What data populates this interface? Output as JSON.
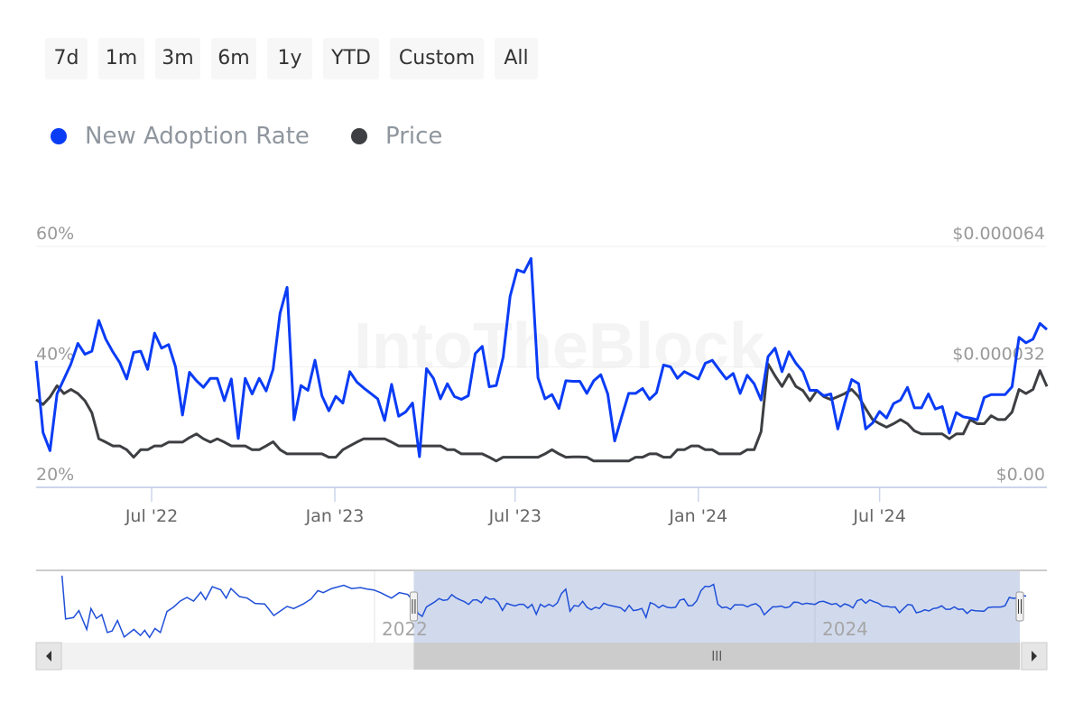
{
  "range_selector": {
    "buttons": [
      "7d",
      "1m",
      "3m",
      "6m",
      "1y",
      "YTD",
      "Custom",
      "All"
    ]
  },
  "legend": [
    {
      "label": "New Adoption Rate",
      "color": "#0a3cf5"
    },
    {
      "label": "Price",
      "color": "#3d3f42"
    }
  ],
  "watermark": "IntoTheBlock",
  "chart_data": {
    "type": "line",
    "title": "",
    "left_axis": {
      "ticks": [
        "20%",
        "40%",
        "60%"
      ],
      "range": [
        20,
        60
      ],
      "unit": "%"
    },
    "right_axis": {
      "ticks": [
        "$0.00",
        "$0.000032",
        "$0.000064"
      ],
      "range": [
        0,
        6.4e-05
      ]
    },
    "x_ticks": [
      {
        "label": "Jul '22",
        "date": "2022-07-01"
      },
      {
        "label": "Jan '23",
        "date": "2023-01-01"
      },
      {
        "label": "Jul '23",
        "date": "2023-07-01"
      },
      {
        "label": "Jan '24",
        "date": "2024-01-01"
      },
      {
        "label": "Jul '24",
        "date": "2024-07-01"
      }
    ],
    "x_range": [
      "2022-03-07",
      "2024-12-16"
    ],
    "grid": "horizontal",
    "legend_position": "top-left",
    "dates": [
      "2022-03-07",
      "2022-03-14",
      "2022-03-21",
      "2022-03-28",
      "2022-04-04",
      "2022-04-11",
      "2022-04-18",
      "2022-04-25",
      "2022-05-02",
      "2022-05-09",
      "2022-05-16",
      "2022-05-23",
      "2022-05-30",
      "2022-06-06",
      "2022-06-13",
      "2022-06-20",
      "2022-06-27",
      "2022-07-04",
      "2022-07-11",
      "2022-07-18",
      "2022-07-25",
      "2022-08-01",
      "2022-08-08",
      "2022-08-15",
      "2022-08-22",
      "2022-08-29",
      "2022-09-05",
      "2022-09-12",
      "2022-09-19",
      "2022-09-26",
      "2022-10-03",
      "2022-10-10",
      "2022-10-17",
      "2022-10-24",
      "2022-10-31",
      "2022-11-07",
      "2022-11-14",
      "2022-11-21",
      "2022-11-28",
      "2022-12-05",
      "2022-12-12",
      "2022-12-19",
      "2022-12-26",
      "2023-01-02",
      "2023-01-09",
      "2023-01-16",
      "2023-01-23",
      "2023-01-30",
      "2023-02-06",
      "2023-02-13",
      "2023-02-20",
      "2023-02-27",
      "2023-03-06",
      "2023-03-13",
      "2023-03-20",
      "2023-03-27",
      "2023-04-03",
      "2023-04-10",
      "2023-04-17",
      "2023-04-24",
      "2023-05-01",
      "2023-05-08",
      "2023-05-15",
      "2023-05-22",
      "2023-05-29",
      "2023-06-05",
      "2023-06-12",
      "2023-06-19",
      "2023-06-26",
      "2023-07-03",
      "2023-07-10",
      "2023-07-17",
      "2023-07-24",
      "2023-07-31",
      "2023-08-07",
      "2023-08-14",
      "2023-08-21",
      "2023-08-28",
      "2023-09-04",
      "2023-09-11",
      "2023-09-18",
      "2023-09-25",
      "2023-10-02",
      "2023-10-09",
      "2023-10-16",
      "2023-10-23",
      "2023-10-30",
      "2023-11-06",
      "2023-11-13",
      "2023-11-20",
      "2023-11-27",
      "2023-12-04",
      "2023-12-11",
      "2023-12-18",
      "2023-12-25",
      "2024-01-01",
      "2024-01-08",
      "2024-01-15",
      "2024-01-22",
      "2024-01-29",
      "2024-02-05",
      "2024-02-12",
      "2024-02-19",
      "2024-02-26",
      "2024-03-04",
      "2024-03-11",
      "2024-03-18",
      "2024-03-25",
      "2024-04-01",
      "2024-04-08",
      "2024-04-15",
      "2024-04-22",
      "2024-04-29",
      "2024-05-06",
      "2024-05-13",
      "2024-05-20",
      "2024-05-27",
      "2024-06-03",
      "2024-06-10",
      "2024-06-17",
      "2024-06-24",
      "2024-07-01",
      "2024-07-08",
      "2024-07-15",
      "2024-07-22",
      "2024-07-29",
      "2024-08-05",
      "2024-08-12",
      "2024-08-19",
      "2024-08-26",
      "2024-09-02",
      "2024-09-09",
      "2024-09-16",
      "2024-09-23",
      "2024-09-30",
      "2024-10-07",
      "2024-10-14",
      "2024-10-21",
      "2024-10-28",
      "2024-11-04",
      "2024-11-11",
      "2024-11-18",
      "2024-11-25",
      "2024-12-02",
      "2024-12-09",
      "2024-12-16"
    ],
    "series": [
      {
        "name": "New Adoption Rate",
        "axis": "left",
        "color": "#0a3cf5",
        "values": [
          41.0,
          29.1,
          26.1,
          35.5,
          38.0,
          40.5,
          43.9,
          42.1,
          42.6,
          47.7,
          44.6,
          42.5,
          40.7,
          38.0,
          42.4,
          42.6,
          39.6,
          45.6,
          43.1,
          43.7,
          40.0,
          32.0,
          39.1,
          37.7,
          36.6,
          38.1,
          38.1,
          34.4,
          38.0,
          28.1,
          38.1,
          35.5,
          38.1,
          36.0,
          39.6,
          48.9,
          53.2,
          31.2,
          36.9,
          36.1,
          41.1,
          35.2,
          32.7,
          35.1,
          34.0,
          39.2,
          37.5,
          36.5,
          35.6,
          34.7,
          31.1,
          37.1,
          31.8,
          32.5,
          34.0,
          25.1,
          39.7,
          38.1,
          34.7,
          37.2,
          35.1,
          34.6,
          35.2,
          42.2,
          43.4,
          36.7,
          36.9,
          41.6,
          51.7,
          56.1,
          55.7,
          58.0,
          38.2,
          34.7,
          35.4,
          33.1,
          37.7,
          37.6,
          37.6,
          35.6,
          37.7,
          38.7,
          35.5,
          27.7,
          31.7,
          35.6,
          35.6,
          36.4,
          34.6,
          35.7,
          40.3,
          40.0,
          38.1,
          39.2,
          38.6,
          38.0,
          40.6,
          41.1,
          39.5,
          38.0,
          38.9,
          35.6,
          38.6,
          37.2,
          34.5,
          41.7,
          43.1,
          39.2,
          42.5,
          40.6,
          39.2,
          36.1,
          36.1,
          35.2,
          35.5,
          29.7,
          34.0,
          37.9,
          37.2,
          29.7,
          30.7,
          32.6,
          31.5,
          33.9,
          34.5,
          36.6,
          33.2,
          33.2,
          35.5,
          33.0,
          33.4,
          29.0,
          32.4,
          31.7,
          31.5,
          31.2,
          34.9,
          35.4,
          35.4,
          35.4,
          36.7,
          44.9,
          44.0,
          44.6,
          47.2,
          46.2
        ]
      },
      {
        "name": "Price",
        "axis": "right",
        "color": "#3d3f42",
        "values": [
          2.33e-05,
          2.2e-05,
          2.4e-05,
          2.7e-05,
          2.49e-05,
          2.6e-05,
          2.49e-05,
          2.3e-05,
          1.98e-05,
          1.29e-05,
          1.2e-05,
          1.1e-05,
          1.1e-05,
          1e-05,
          8e-06,
          1e-05,
          1e-05,
          1.1e-05,
          1.1e-05,
          1.2e-05,
          1.2e-05,
          1.2e-05,
          1.32e-05,
          1.42e-05,
          1.29e-05,
          1.2e-05,
          1.29e-05,
          1.2e-05,
          1.1e-05,
          1.1e-05,
          1.1e-05,
          1e-05,
          1e-05,
          1.1e-05,
          1.21e-05,
          1e-05,
          8.9e-06,
          8.9e-06,
          8.9e-06,
          8.9e-06,
          8.9e-06,
          8.9e-06,
          8e-06,
          8e-06,
          1e-05,
          1.1e-05,
          1.2e-05,
          1.29e-05,
          1.29e-05,
          1.29e-05,
          1.29e-05,
          1.2e-05,
          1.1e-05,
          1.1e-05,
          1.1e-05,
          1.1e-05,
          1.1e-05,
          1.1e-05,
          1.1e-05,
          1e-05,
          1e-05,
          8.9e-06,
          8.9e-06,
          8.9e-06,
          8.9e-06,
          8e-06,
          7e-06,
          8e-06,
          8e-06,
          8e-06,
          8e-06,
          8e-06,
          8e-06,
          8.9e-06,
          1e-05,
          8.9e-06,
          8e-06,
          8.1e-06,
          8.1e-06,
          8e-06,
          7e-06,
          7e-06,
          7e-06,
          7e-06,
          7e-06,
          7e-06,
          8e-06,
          8e-06,
          8.9e-06,
          8.9e-06,
          8e-06,
          8e-06,
          1e-05,
          1e-05,
          1.1e-05,
          1.1e-05,
          1e-05,
          1e-05,
          8.9e-06,
          8.9e-06,
          8.9e-06,
          8.9e-06,
          1e-05,
          1e-05,
          1.48e-05,
          3.28e-05,
          2.96e-05,
          2.68e-05,
          3e-05,
          2.68e-05,
          2.57e-05,
          2.3e-05,
          2.57e-05,
          2.41e-05,
          2.33e-05,
          2.41e-05,
          2.49e-05,
          2.6e-05,
          2.41e-05,
          2.09e-05,
          1.8e-05,
          1.69e-05,
          1.6e-05,
          1.69e-05,
          1.8e-05,
          1.69e-05,
          1.5e-05,
          1.42e-05,
          1.42e-05,
          1.42e-05,
          1.42e-05,
          1.29e-05,
          1.42e-05,
          1.42e-05,
          1.8e-05,
          1.69e-05,
          1.69e-05,
          1.9e-05,
          1.8e-05,
          1.8e-05,
          2e-05,
          2.6e-05,
          2.49e-05,
          2.6e-05,
          3.1e-05,
          2.68e-05
        ]
      }
    ],
    "navigator": {
      "x_ticks": [
        {
          "label": "2022",
          "date": "2022-01-01"
        },
        {
          "label": "2024",
          "date": "2024-01-01"
        }
      ],
      "selected_range": [
        "2022-03-07",
        "2024-12-16"
      ],
      "value_range": [
        0,
        71
      ],
      "history": [
        [
          "2020-08-01",
          66.7
        ],
        [
          "2020-08-07",
          23.5
        ],
        [
          "2020-08-20",
          24.9
        ],
        [
          "2020-08-29",
          31.8
        ],
        [
          "2020-09-11",
          13.1
        ],
        [
          "2020-09-18",
          33.9
        ],
        [
          "2020-09-27",
          24.1
        ],
        [
          "2020-10-06",
          27.9
        ],
        [
          "2020-10-15",
          10.1
        ],
        [
          "2020-10-23",
          11.6
        ],
        [
          "2020-11-01",
          22.0
        ],
        [
          "2020-11-12",
          5.6
        ],
        [
          "2020-11-28",
          13.1
        ],
        [
          "2020-12-09",
          7.1
        ],
        [
          "2020-12-16",
          12.2
        ],
        [
          "2020-12-24",
          5.1
        ],
        [
          "2021-01-02",
          14.0
        ],
        [
          "2021-01-11",
          10.1
        ],
        [
          "2021-01-22",
          30.9
        ],
        [
          "2021-02-02",
          35.4
        ],
        [
          "2021-02-13",
          41.3
        ],
        [
          "2021-02-24",
          44.9
        ],
        [
          "2021-03-07",
          41.3
        ],
        [
          "2021-03-19",
          50.2
        ],
        [
          "2021-03-27",
          42.8
        ],
        [
          "2021-04-07",
          55.6
        ],
        [
          "2021-04-21",
          52.6
        ],
        [
          "2021-04-30",
          44.3
        ],
        [
          "2021-05-08",
          53.8
        ],
        [
          "2021-05-22",
          45.8
        ],
        [
          "2021-06-04",
          44.3
        ],
        [
          "2021-06-17",
          39.0
        ],
        [
          "2021-07-03",
          38.5
        ],
        [
          "2021-07-18",
          27.0
        ],
        [
          "2021-08-09",
          36.0
        ],
        [
          "2021-08-20",
          33.9
        ],
        [
          "2021-09-05",
          38.5
        ],
        [
          "2021-09-18",
          43.5
        ],
        [
          "2021-09-29",
          51.8
        ],
        [
          "2021-10-08",
          49.7
        ],
        [
          "2021-10-22",
          53.8
        ],
        [
          "2021-11-11",
          57.1
        ],
        [
          "2021-11-24",
          53.8
        ],
        [
          "2021-12-09",
          54.7
        ],
        [
          "2021-12-20",
          53.3
        ],
        [
          "2021-12-31",
          52.4
        ],
        [
          "2022-01-11",
          49.7
        ],
        [
          "2022-01-29",
          44.3
        ],
        [
          "2022-02-11",
          49.7
        ],
        [
          "2022-02-25",
          47.9
        ]
      ]
    }
  }
}
